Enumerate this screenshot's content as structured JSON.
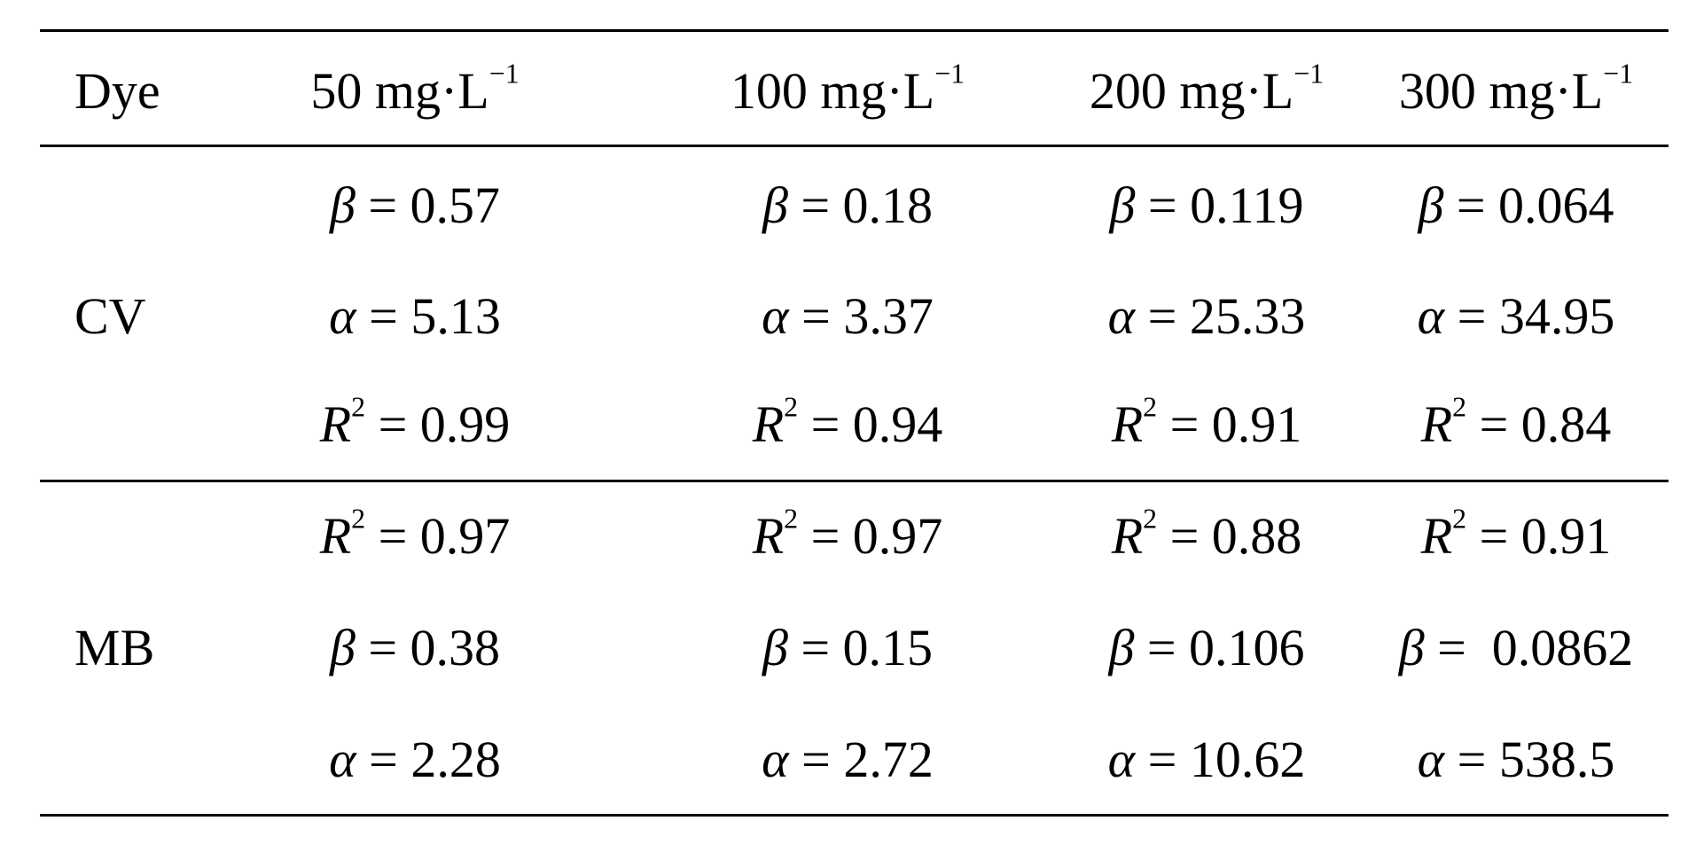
{
  "table": {
    "headers": {
      "dye": "Dye",
      "col1_value": "50 mg·L",
      "col1_exp": "−1",
      "col2_value": "100 mg·L",
      "col2_exp": "−1",
      "col3_value": "200 mg·L",
      "col3_exp": "−1",
      "col4_value": "300 mg·L",
      "col4_exp": "−1"
    },
    "groups": [
      {
        "dye": "CV",
        "rows": [
          {
            "symbol": "β",
            "sup": "",
            "values": [
              "= 0.57",
              "= 0.18",
              "= 0.119",
              "= 0.064"
            ]
          },
          {
            "symbol": "α",
            "sup": "",
            "values": [
              "= 5.13",
              "= 3.37",
              "= 25.33",
              "= 34.95"
            ]
          },
          {
            "symbol": "R",
            "sup": "2",
            "values": [
              "= 0.99",
              "= 0.94",
              "= 0.91",
              "= 0.84"
            ]
          }
        ]
      },
      {
        "dye": "MB",
        "rows": [
          {
            "symbol": "R",
            "sup": "2",
            "values": [
              "= 0.97",
              "= 0.97",
              "= 0.88",
              "= 0.91"
            ]
          },
          {
            "symbol": "β",
            "sup": "",
            "values": [
              "= 0.38",
              "= 0.15",
              "= 0.106",
              "=  0.0862"
            ]
          },
          {
            "symbol": "α",
            "sup": "",
            "values": [
              "= 2.28",
              "= 2.72",
              "= 10.62",
              "= 538.5"
            ]
          }
        ]
      }
    ]
  }
}
